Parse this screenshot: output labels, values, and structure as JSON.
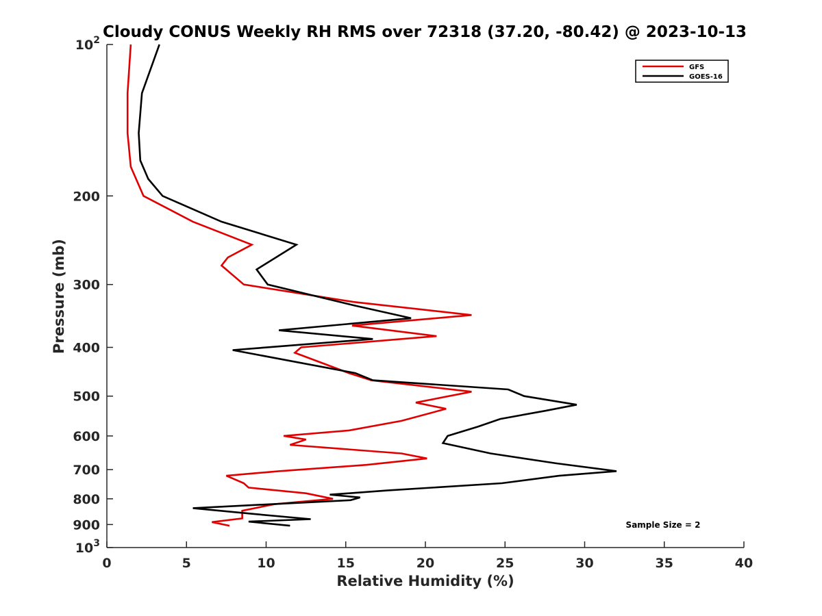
{
  "chart_data": {
    "type": "line",
    "title": "Cloudy CONUS Weekly RH RMS over 72318 (37.20, -80.42) @ 2023-10-13",
    "xlabel": "Relative Humidity (%)",
    "ylabel": "Pressure (mb)",
    "xlim": [
      0,
      40
    ],
    "ylim": [
      100,
      1000
    ],
    "yscale": "log",
    "yreversed": true,
    "x_ticks": [
      "0",
      "5",
      "10",
      "15",
      "20",
      "25",
      "30",
      "35",
      "40"
    ],
    "x_tick_values": [
      0,
      5,
      10,
      15,
      20,
      25,
      30,
      35,
      40
    ],
    "y_ticks": [
      {
        "value": 100,
        "base": "10",
        "exp": "2"
      },
      {
        "value": 200,
        "label": "200"
      },
      {
        "value": 300,
        "label": "300"
      },
      {
        "value": 400,
        "label": "400"
      },
      {
        "value": 500,
        "label": "500"
      },
      {
        "value": 600,
        "label": "600"
      },
      {
        "value": 700,
        "label": "700"
      },
      {
        "value": 800,
        "label": "800"
      },
      {
        "value": 900,
        "label": "900"
      },
      {
        "value": 1000,
        "base": "10",
        "exp": "3"
      }
    ],
    "legend_position": "top-right",
    "annotation": "Sample Size = 2",
    "series": [
      {
        "name": "GFS",
        "color": "#e00000",
        "points": [
          [
            1.5,
            100
          ],
          [
            1.3,
            125
          ],
          [
            1.3,
            150
          ],
          [
            1.5,
            175
          ],
          [
            2.3,
            200
          ],
          [
            5.4,
            225
          ],
          [
            9.1,
            250
          ],
          [
            7.6,
            265
          ],
          [
            7.2,
            275
          ],
          [
            8.6,
            300
          ],
          [
            15.5,
            325
          ],
          [
            22.9,
            345
          ],
          [
            15.4,
            362
          ],
          [
            20.7,
            380
          ],
          [
            12.2,
            400
          ],
          [
            11.8,
            410
          ],
          [
            15.2,
            450
          ],
          [
            16.6,
            465
          ],
          [
            22.9,
            490
          ],
          [
            19.4,
            515
          ],
          [
            21.3,
            530
          ],
          [
            18.5,
            560
          ],
          [
            15.2,
            585
          ],
          [
            11.1,
            600
          ],
          [
            12.5,
            610
          ],
          [
            11.5,
            625
          ],
          [
            18.5,
            650
          ],
          [
            20.1,
            665
          ],
          [
            16.3,
            685
          ],
          [
            10.8,
            705
          ],
          [
            7.5,
            720
          ],
          [
            8.6,
            745
          ],
          [
            8.9,
            760
          ],
          [
            12.5,
            780
          ],
          [
            14.2,
            800
          ],
          [
            10.5,
            820
          ],
          [
            8.5,
            845
          ],
          [
            8.5,
            875
          ],
          [
            6.6,
            890
          ],
          [
            7.7,
            905
          ]
        ]
      },
      {
        "name": "GOES-16",
        "color": "#000000",
        "points": [
          [
            3.3,
            100
          ],
          [
            2.2,
            125
          ],
          [
            2.0,
            150
          ],
          [
            2.1,
            170
          ],
          [
            2.6,
            185
          ],
          [
            3.5,
            200
          ],
          [
            7.2,
            225
          ],
          [
            11.9,
            250
          ],
          [
            9.4,
            280
          ],
          [
            10.1,
            300
          ],
          [
            15.5,
            330
          ],
          [
            19.1,
            350
          ],
          [
            10.8,
            370
          ],
          [
            16.7,
            385
          ],
          [
            7.9,
            405
          ],
          [
            15.6,
            450
          ],
          [
            16.7,
            465
          ],
          [
            25.2,
            485
          ],
          [
            26.2,
            500
          ],
          [
            29.5,
            520
          ],
          [
            27.5,
            535
          ],
          [
            24.7,
            555
          ],
          [
            23.3,
            575
          ],
          [
            21.4,
            600
          ],
          [
            21.1,
            620
          ],
          [
            24.1,
            650
          ],
          [
            28.2,
            680
          ],
          [
            32.0,
            705
          ],
          [
            28.4,
            720
          ],
          [
            24.8,
            745
          ],
          [
            17.6,
            770
          ],
          [
            14.0,
            785
          ],
          [
            15.9,
            795
          ],
          [
            15.3,
            805
          ],
          [
            5.4,
            835
          ],
          [
            9.3,
            858
          ],
          [
            12.8,
            878
          ],
          [
            8.9,
            888
          ],
          [
            11.5,
            905
          ]
        ]
      }
    ]
  }
}
